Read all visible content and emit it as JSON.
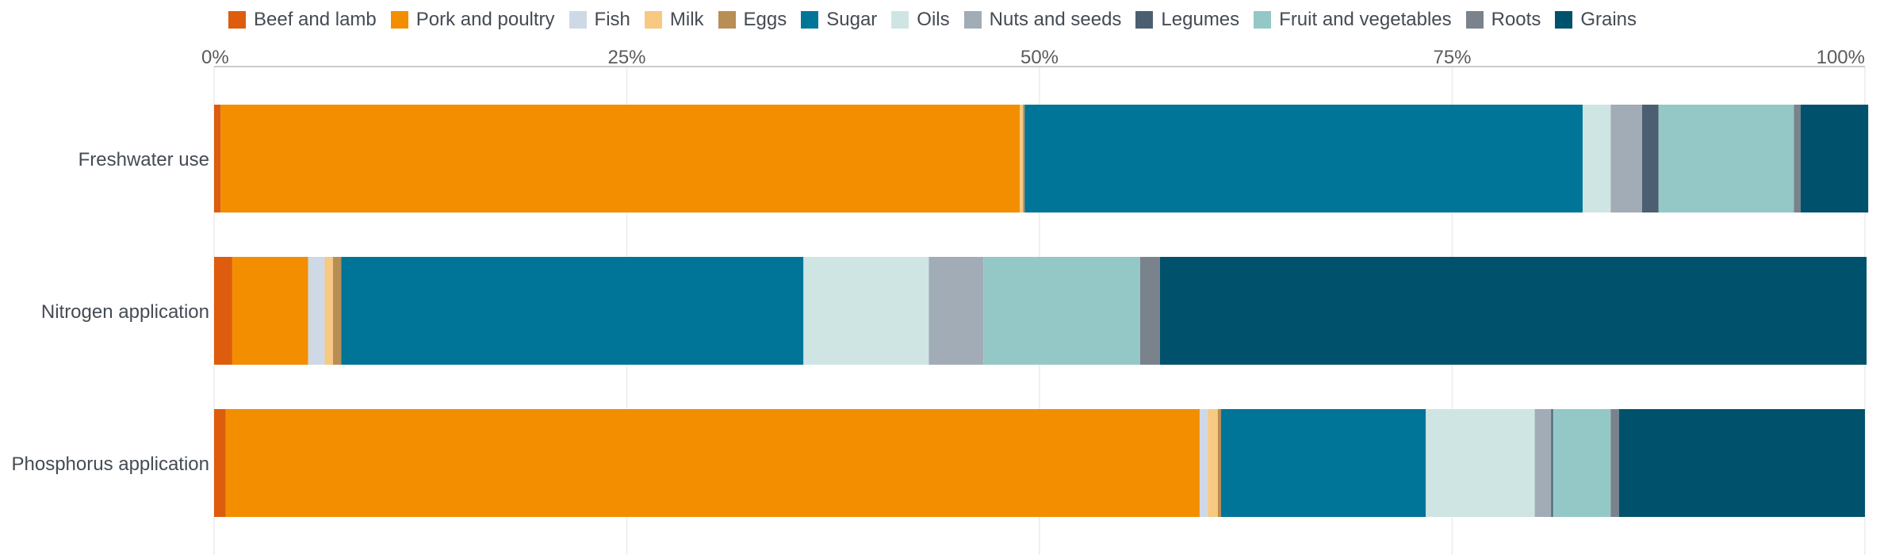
{
  "chart_data": {
    "type": "bar",
    "orientation": "horizontal",
    "stacked": true,
    "normalized": true,
    "xlim": [
      0,
      100
    ],
    "x_ticks": [
      "0%",
      "25%",
      "50%",
      "75%",
      "100%"
    ],
    "x_tick_values": [
      0,
      25,
      50,
      75,
      100
    ],
    "grid": true,
    "legend_position": "top",
    "categories": [
      "Freshwater use",
      "Nitrogen application",
      "Phosphorus application"
    ],
    "series": [
      {
        "name": "Beef and lamb",
        "color": "#dd5c0d",
        "values": [
          0.4,
          1.1,
          0.7
        ]
      },
      {
        "name": "Pork and poultry",
        "color": "#f28e00",
        "values": [
          48.4,
          4.6,
          59.0
        ]
      },
      {
        "name": "Fish",
        "color": "#cfd9e6",
        "values": [
          0.0,
          1.0,
          0.5
        ]
      },
      {
        "name": "Milk",
        "color": "#f7c981",
        "values": [
          0.2,
          0.5,
          0.6
        ]
      },
      {
        "name": "Eggs",
        "color": "#b88e55",
        "values": [
          0.1,
          0.5,
          0.2
        ]
      },
      {
        "name": "Sugar",
        "color": "#007597",
        "values": [
          33.8,
          28.0,
          12.4
        ]
      },
      {
        "name": "Oils",
        "color": "#cfe5e3",
        "values": [
          1.7,
          7.6,
          6.6
        ]
      },
      {
        "name": "Nuts and seeds",
        "color": "#a2acb7",
        "values": [
          1.9,
          3.3,
          1.0
        ]
      },
      {
        "name": "Legumes",
        "color": "#4b5f70",
        "values": [
          1.0,
          0.0,
          0.1
        ]
      },
      {
        "name": "Fruit and vegetables",
        "color": "#94c8c7",
        "values": [
          8.2,
          9.5,
          3.5
        ]
      },
      {
        "name": "Roots",
        "color": "#7a828c",
        "values": [
          0.4,
          1.2,
          0.5
        ]
      },
      {
        "name": "Grains",
        "color": "#00526c",
        "values": [
          4.1,
          42.8,
          14.9
        ]
      }
    ]
  }
}
